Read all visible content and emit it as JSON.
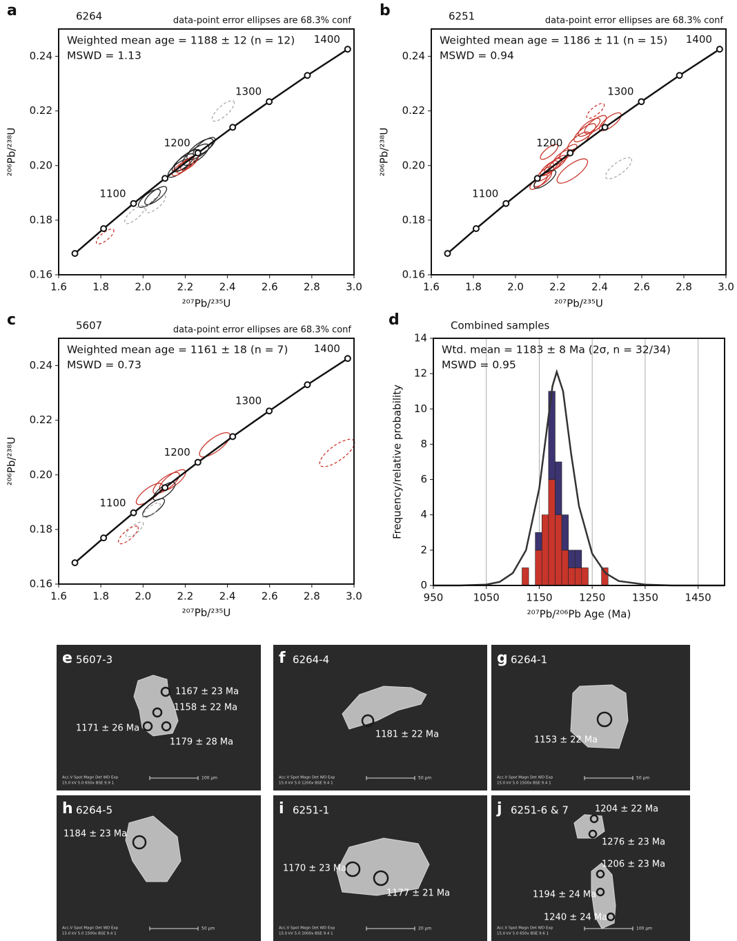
{
  "chart_data": [
    {
      "type": "concordia",
      "label": "a",
      "title": "6264",
      "note": "data-point error ellipses are 68.3% conf",
      "annotations": [
        "Weighted mean age = 1188 ± 12 (n = 12)",
        "MSWD = 1.13"
      ],
      "xlabel": "²⁰⁷Pb/²³⁵U",
      "ylabel": "²⁰⁶Pb/²³⁸U",
      "xlim": [
        1.6,
        3.0
      ],
      "ylim": [
        0.16,
        0.25
      ],
      "xticks": [
        1.6,
        1.8,
        {
          "value": 2.0,
          "label": "2.0"
        },
        2.2,
        2.4,
        2.6,
        2.8,
        {
          "value": 3.0,
          "label": "3.0"
        }
      ],
      "yticks": [
        0.16,
        0.18,
        {
          "value": 0.2,
          "label": "0.20"
        },
        0.22,
        0.24
      ],
      "curve": {
        "x": [
          1.677,
          1.813,
          1.955,
          2.104,
          2.26,
          2.425,
          2.598,
          2.779,
          2.97
        ],
        "y": [
          0.1678,
          0.1769,
          0.1861,
          0.1953,
          0.2046,
          0.214,
          0.2234,
          0.233,
          0.2426
        ],
        "point_labels": [
          null,
          null,
          1100,
          null,
          1200,
          null,
          1300,
          null,
          1400
        ]
      },
      "series": [
        {
          "color": "#222222",
          "dashed": false,
          "x": [
            2.03,
            2.06,
            2.17,
            2.19,
            2.21,
            2.25,
            2.27,
            2.29
          ],
          "y": [
            0.188,
            0.189,
            0.199,
            0.201,
            0.202,
            0.204,
            0.206,
            0.207
          ],
          "xerr": [
            0.05,
            0.05,
            0.05,
            0.05,
            0.06,
            0.06,
            0.06,
            0.05
          ],
          "yerr": [
            0.003,
            0.003,
            0.003,
            0.003,
            0.0035,
            0.0035,
            0.0035,
            0.003
          ]
        },
        {
          "color": "#c8352b",
          "dashed": false,
          "x": [
            2.18,
            2.2,
            2.22
          ],
          "y": [
            0.199,
            0.2,
            0.201
          ],
          "xerr": [
            0.04,
            0.04,
            0.04
          ],
          "yerr": [
            0.0025,
            0.0025,
            0.0025
          ]
        },
        {
          "color": "#c8352b",
          "dashed": true,
          "x": [
            1.82
          ],
          "y": [
            0.174
          ],
          "xerr": [
            0.04
          ],
          "yerr": [
            0.0025
          ]
        },
        {
          "color": "#aaaaaa",
          "dashed": true,
          "x": [
            1.96,
            2.06,
            2.38
          ],
          "y": [
            0.182,
            0.186,
            0.22
          ],
          "xerr": [
            0.045,
            0.045,
            0.05
          ],
          "yerr": [
            0.003,
            0.003,
            0.0035
          ]
        }
      ]
    },
    {
      "type": "concordia",
      "label": "b",
      "title": "6251",
      "note": "data-point error ellipses are 68.3% conf",
      "annotations": [
        "Weighted mean age = 1186 ± 11 (n = 15)",
        "MSWD = 0.94"
      ],
      "xlabel": "²⁰⁷Pb/²³⁵U",
      "ylabel": "²⁰⁶Pb/²³⁸U",
      "xlim": [
        1.6,
        3.0
      ],
      "ylim": [
        0.16,
        0.25
      ],
      "xticks": [
        1.6,
        1.8,
        {
          "value": 2.0,
          "label": "2.0"
        },
        2.2,
        2.4,
        2.6,
        2.8,
        {
          "value": 3.0,
          "label": "3.0"
        }
      ],
      "yticks": [
        0.16,
        0.18,
        {
          "value": 0.2,
          "label": "0.20"
        },
        0.22,
        0.24
      ],
      "curve": {
        "x": [
          1.677,
          1.813,
          1.955,
          2.104,
          2.26,
          2.425,
          2.598,
          2.779,
          2.97
        ],
        "y": [
          0.1678,
          0.1769,
          0.1861,
          0.1953,
          0.2046,
          0.214,
          0.2234,
          0.233,
          0.2426
        ],
        "point_labels": [
          null,
          null,
          1100,
          null,
          1200,
          null,
          1300,
          null,
          1400
        ]
      },
      "series": [
        {
          "color": "#c8352b",
          "dashed": false,
          "x": [
            2.11,
            2.13,
            2.14,
            2.16,
            2.18,
            2.2,
            2.22,
            2.25,
            2.3,
            2.33,
            2.35,
            2.38,
            2.45,
            2.16,
            2.27
          ],
          "y": [
            0.194,
            0.195,
            0.197,
            0.199,
            0.2,
            0.201,
            0.203,
            0.205,
            0.209,
            0.212,
            0.214,
            0.215,
            0.216,
            0.205,
            0.198
          ],
          "xerr": [
            0.04,
            0.04,
            0.04,
            0.04,
            0.04,
            0.04,
            0.04,
            0.04,
            0.05,
            0.05,
            0.05,
            0.05,
            0.05,
            0.04,
            0.07
          ],
          "yerr": [
            0.0025,
            0.0025,
            0.0025,
            0.0025,
            0.0025,
            0.0025,
            0.0025,
            0.0025,
            0.003,
            0.003,
            0.003,
            0.003,
            0.003,
            0.0025,
            0.004
          ]
        },
        {
          "color": "#c8352b",
          "dashed": true,
          "x": [
            2.38
          ],
          "y": [
            0.22
          ],
          "xerr": [
            0.04
          ],
          "yerr": [
            0.0025
          ]
        },
        {
          "color": "#222222",
          "dashed": false,
          "x": [
            2.14
          ],
          "y": [
            0.195
          ],
          "xerr": [
            0.05
          ],
          "yerr": [
            0.003
          ]
        },
        {
          "color": "#aaaaaa",
          "dashed": true,
          "x": [
            2.49
          ],
          "y": [
            0.199
          ],
          "xerr": [
            0.06
          ],
          "yerr": [
            0.0035
          ]
        }
      ]
    },
    {
      "type": "concordia",
      "label": "c",
      "title": "5607",
      "note": "data-point error ellipses are 68.3% conf",
      "annotations": [
        "Weighted mean age = 1161 ± 18 (n = 7)",
        "MSWD = 0.73"
      ],
      "xlabel": "²⁰⁷Pb/²³⁵U",
      "ylabel": "²⁰⁶Pb/²³⁸U",
      "xlim": [
        1.6,
        3.0
      ],
      "ylim": [
        0.16,
        0.25
      ],
      "xticks": [
        1.6,
        1.8,
        {
          "value": 2.0,
          "label": "2.0"
        },
        2.2,
        2.4,
        2.6,
        2.8,
        {
          "value": 3.0,
          "label": "3.0"
        }
      ],
      "yticks": [
        0.16,
        0.18,
        {
          "value": 0.2,
          "label": "0.20"
        },
        0.22,
        0.24
      ],
      "curve": {
        "x": [
          1.677,
          1.813,
          1.955,
          2.104,
          2.26,
          2.425,
          2.598,
          2.779,
          2.97
        ],
        "y": [
          0.1678,
          0.1769,
          0.1861,
          0.1953,
          0.2046,
          0.214,
          0.2234,
          0.233,
          0.2426
        ],
        "point_labels": [
          null,
          null,
          1100,
          null,
          1200,
          null,
          1300,
          null,
          1400
        ]
      },
      "series": [
        {
          "color": "#c8352b",
          "dashed": false,
          "x": [
            2.03,
            2.11,
            2.14,
            2.34
          ],
          "y": [
            0.193,
            0.197,
            0.198,
            0.211
          ],
          "xerr": [
            0.06,
            0.06,
            0.06,
            0.07
          ],
          "yerr": [
            0.0035,
            0.0035,
            0.0035,
            0.004
          ]
        },
        {
          "color": "#222222",
          "dashed": false,
          "x": [
            2.05,
            2.1
          ],
          "y": [
            0.188,
            0.194
          ],
          "xerr": [
            0.05,
            0.05
          ],
          "yerr": [
            0.003,
            0.003
          ]
        },
        {
          "color": "#aaaaaa",
          "dashed": true,
          "x": [
            1.96,
            2.04
          ],
          "y": [
            0.18,
            0.187
          ],
          "xerr": [
            0.04,
            0.04
          ],
          "yerr": [
            0.0025,
            0.0025
          ]
        },
        {
          "color": "#c8352b",
          "dashed": true,
          "x": [
            1.93,
            2.92
          ],
          "y": [
            0.178,
            0.208
          ],
          "xerr": [
            0.045,
            0.08
          ],
          "yerr": [
            0.003,
            0.0045
          ]
        }
      ]
    },
    {
      "type": "histogram",
      "label": "d",
      "title": "Combined samples",
      "annotations": [
        "Wtd. mean = 1183 ± 8 Ma (2σ, n = 32/34)",
        "MSWD = 0.95"
      ],
      "xlabel": "²⁰⁷Pb/²⁰⁶Pb Age (Ma)",
      "ylabel": "Frequency/relative probability",
      "xlim": [
        950,
        1500
      ],
      "ylim": [
        0,
        14
      ],
      "xticks": [
        950,
        1050,
        1150,
        1250,
        1350,
        1450
      ],
      "yticks": [
        0,
        2,
        4,
        6,
        8,
        10,
        12,
        14
      ],
      "grid": true,
      "bins": [
        1117.5,
        1130,
        1142.5,
        1155,
        1167.5,
        1180,
        1192.5,
        1205,
        1217.5,
        1230,
        1242.5,
        1255,
        1267.5,
        1280
      ],
      "series": [
        {
          "color": "#c8352b",
          "values": [
            1,
            0,
            2,
            4,
            6,
            4,
            2,
            1,
            1,
            1,
            0,
            0,
            1
          ]
        },
        {
          "color": "#3c3470",
          "values": [
            0,
            0,
            1,
            0,
            5,
            3,
            2,
            1,
            1,
            0,
            0,
            0,
            0
          ]
        }
      ],
      "curve": {
        "x": [
          950,
          1000,
          1050,
          1075,
          1100,
          1125,
          1150,
          1165,
          1175,
          1183,
          1195,
          1210,
          1225,
          1250,
          1275,
          1300,
          1350,
          1400,
          1500
        ],
        "y": [
          0,
          0,
          0.05,
          0.2,
          0.7,
          2.0,
          5.5,
          9.0,
          11.3,
          12.1,
          11.0,
          7.5,
          4.5,
          1.8,
          0.7,
          0.25,
          0.05,
          0,
          0
        ]
      }
    }
  ],
  "images": [
    {
      "label": "e",
      "sample": "5607-3",
      "spots": [
        "1167 ± 23 Ma",
        "1158 ± 22 Ma",
        "1171 ± 26 Ma",
        "1179 ± 28 Ma"
      ],
      "footer": [
        "Acc.V  Spot Magn  Det  WD  Exp",
        "15.0 kV 5.0  650x  BSE 9.9  1"
      ],
      "scale": "100 μm"
    },
    {
      "label": "f",
      "sample": "6264-4",
      "spots": [
        "1181 ± 22 Ma"
      ],
      "footer": [
        "Acc.V  Spot Magn  Det  WD  Exp",
        "15.0 kV 5.0  1200x  BSE 9.4  1"
      ],
      "scale": "50 μm"
    },
    {
      "label": "g",
      "sample": "6264-1",
      "spots": [
        "1153 ± 22 Ma"
      ],
      "footer": [
        "Acc.V  Spot Magn  Det  WD  Exp",
        "15.0 kV 5.0  1500x  BSE 9.4  1"
      ],
      "scale": "50 μm"
    },
    {
      "label": "h",
      "sample": "6264-5",
      "spots": [
        "1184 ± 23 Ma"
      ],
      "footer": [
        "Acc.V  Spot Magn  Det  WD  Exp",
        "15.0 kV 5.0  1500x  BSE 9.4  1"
      ],
      "scale": "50 μm"
    },
    {
      "label": "i",
      "sample": "6251-1",
      "spots": [
        "1170 ± 23 Ma",
        "1177 ± 21 Ma"
      ],
      "footer": [
        "Acc.V  Spot Magn  Det  WD  Exp",
        "15.0 kV 5.0  2000x  BSE 9.4  1"
      ],
      "scale": "20 μm"
    },
    {
      "label": "j",
      "sample": "6251-6 & 7",
      "spots": [
        "1204 ± 22 Ma",
        "1276 ± 23 Ma",
        "1206 ± 23 Ma",
        "1194 ± 24 Ma",
        "1240 ± 24 Ma"
      ],
      "footer": [
        "Acc.V  Spot Magn  Det  WD  Exp",
        "15.0 kV 5.0  650x  BSE 9.6  1"
      ],
      "scale": "100 μm"
    }
  ]
}
